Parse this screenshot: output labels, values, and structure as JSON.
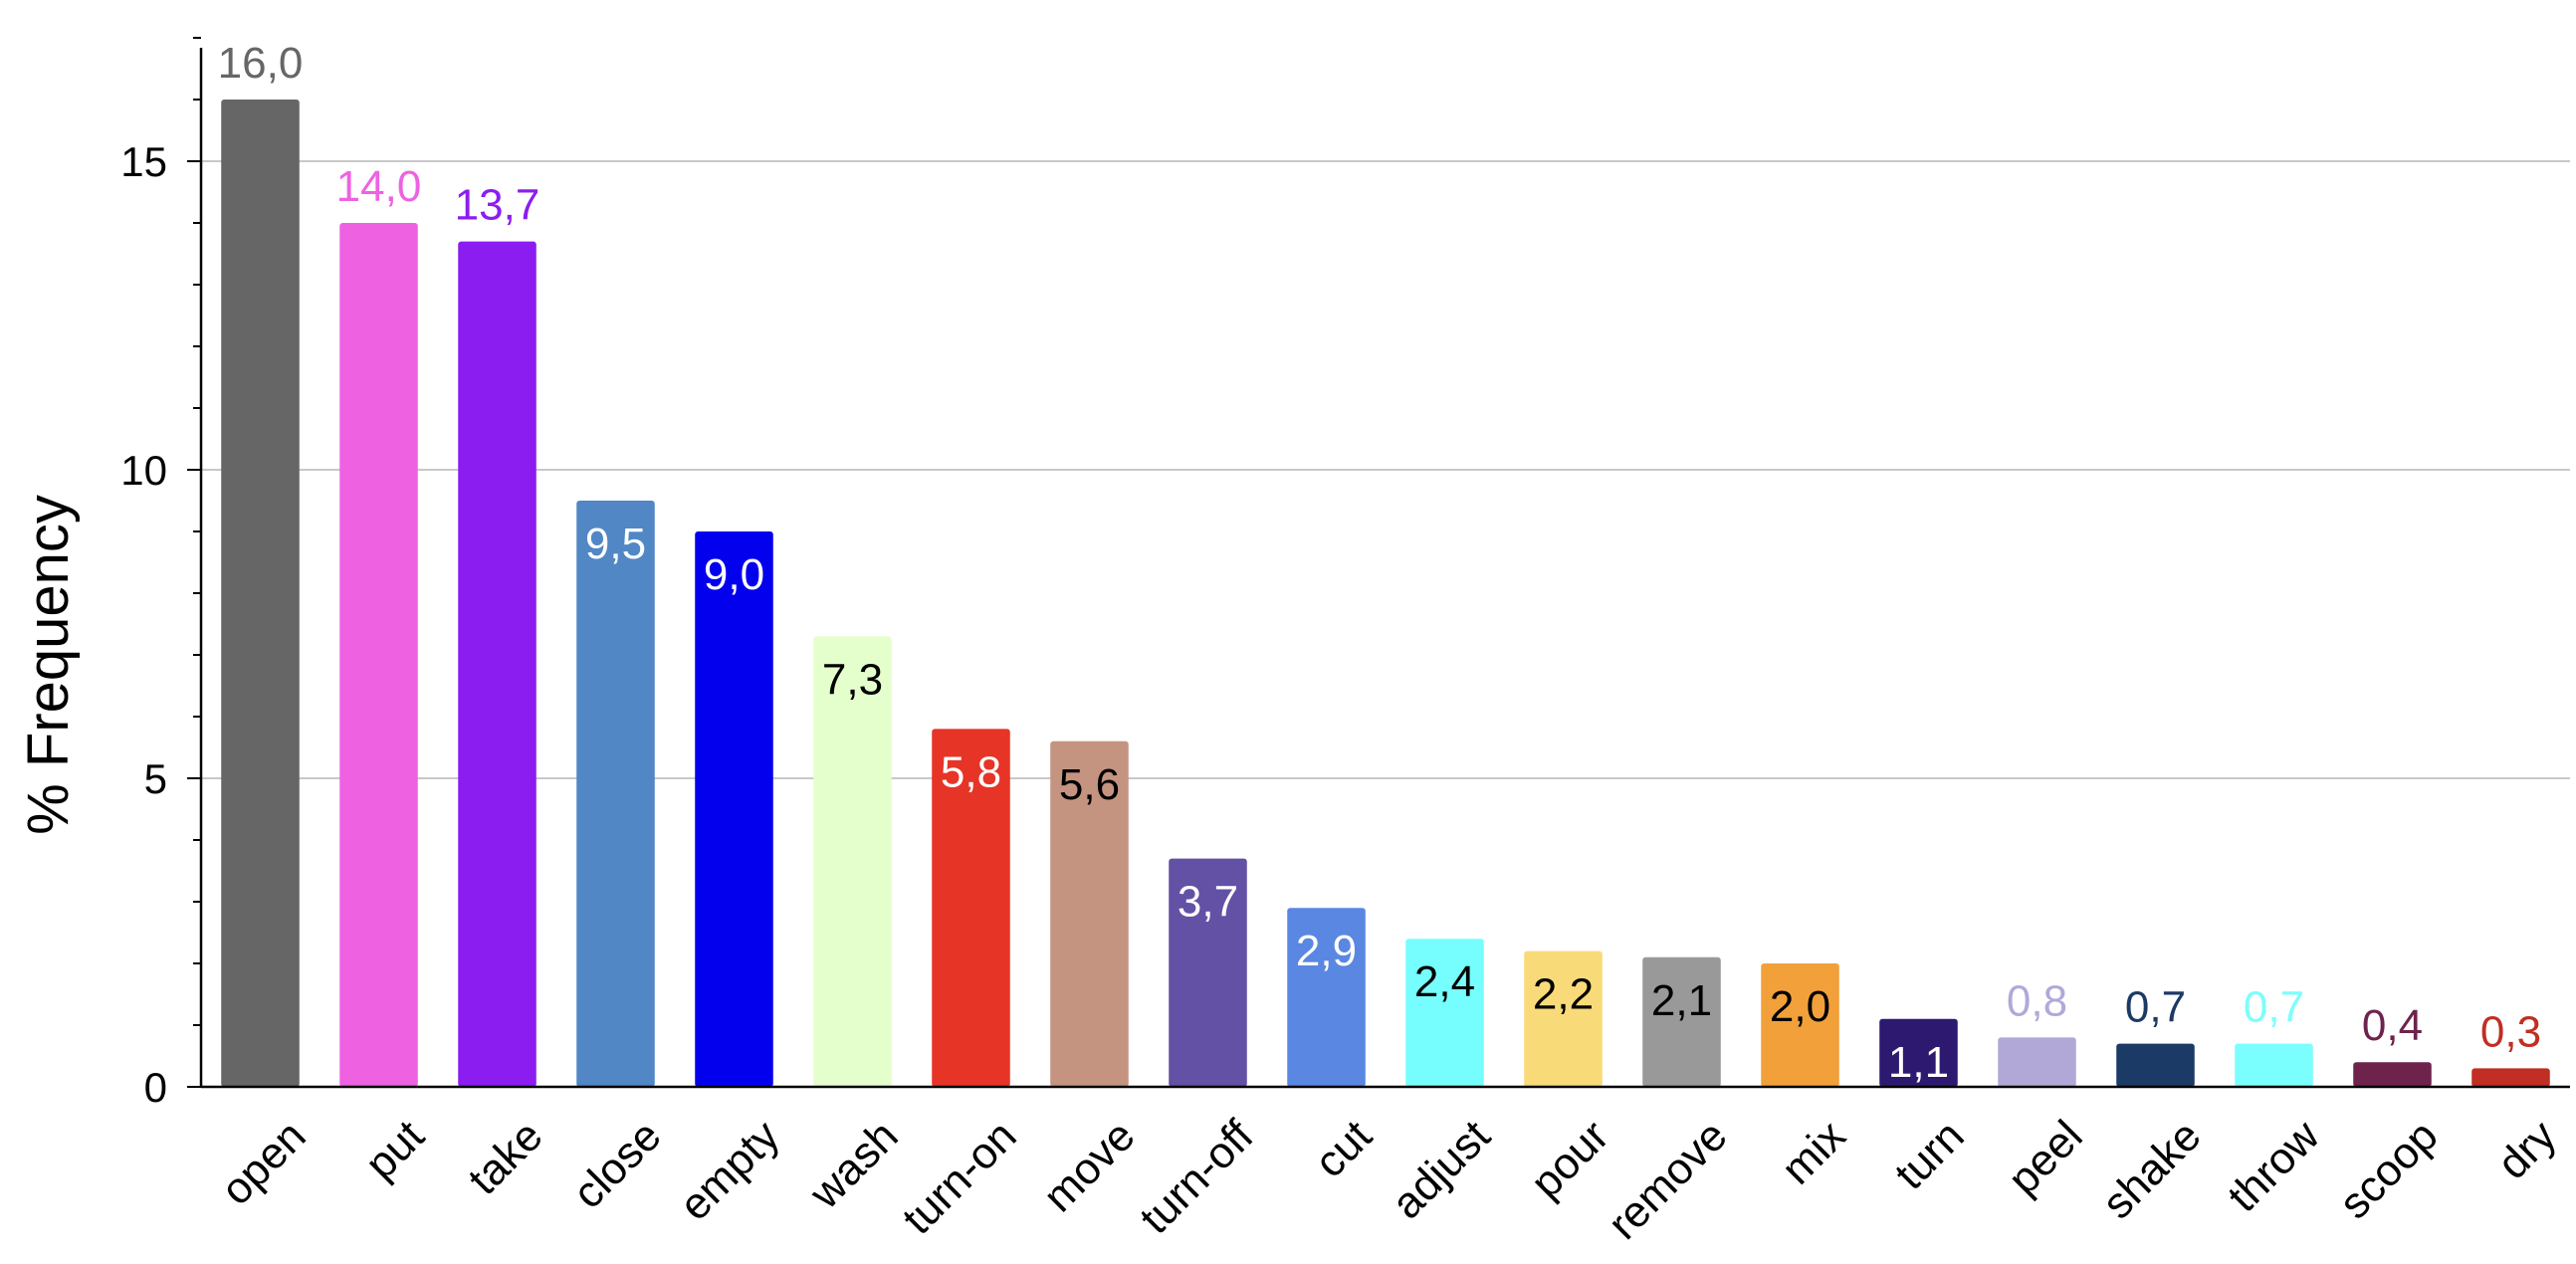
{
  "chart_data": {
    "type": "bar",
    "title": "",
    "xlabel": "",
    "ylabel": "% Frequency",
    "ylim": [
      0,
      17
    ],
    "yticks": [
      0,
      5,
      10,
      15
    ],
    "grid": true,
    "legend": "none",
    "categories": [
      "open",
      "put",
      "take",
      "close",
      "empty",
      "wash",
      "turn-on",
      "move",
      "turn-off",
      "cut",
      "adjust",
      "pour",
      "remove",
      "mix",
      "turn",
      "peel",
      "shake",
      "throw",
      "scoop",
      "dry"
    ],
    "values": [
      16.0,
      14.0,
      13.7,
      9.5,
      9.0,
      7.3,
      5.8,
      5.6,
      3.7,
      2.9,
      2.4,
      2.2,
      2.1,
      2.0,
      1.1,
      0.8,
      0.7,
      0.7,
      0.4,
      0.3
    ],
    "value_labels": [
      "16,0",
      "14,0",
      "13,7",
      "9,5",
      "9,0",
      "7,3",
      "5,8",
      "5,6",
      "3,7",
      "2,9",
      "2,4",
      "2,2",
      "2,1",
      "2,0",
      "1,1",
      "0,8",
      "0,7",
      "0,7",
      "0,4",
      "0,3"
    ],
    "colors": [
      "#666666",
      "#ee62e2",
      "#8c1df1",
      "#5187c4",
      "#0300ee",
      "#e4ffcc",
      "#e63427",
      "#c59480",
      "#6251a4",
      "#5a87e2",
      "#76fefe",
      "#f8da79",
      "#999999",
      "#f2a03a",
      "#2d1a70",
      "#b2a8d8",
      "#1c3a66",
      "#7bfefe",
      "#6e234c",
      "#c02e24"
    ],
    "label_colors": [
      "#666666",
      "#ee62e2",
      "#8c1df1",
      "#ffffff",
      "#ffffff",
      "#000000",
      "#ffffff",
      "#000000",
      "#ffffff",
      "#ffffff",
      "#000000",
      "#000000",
      "#000000",
      "#000000",
      "#ffffff",
      "#b2a8d8",
      "#1c3a66",
      "#7bfefe",
      "#6e234c",
      "#c02e24"
    ],
    "label_inside": [
      false,
      false,
      false,
      true,
      true,
      true,
      true,
      true,
      true,
      true,
      true,
      true,
      true,
      true,
      true,
      false,
      false,
      false,
      false,
      false
    ]
  }
}
